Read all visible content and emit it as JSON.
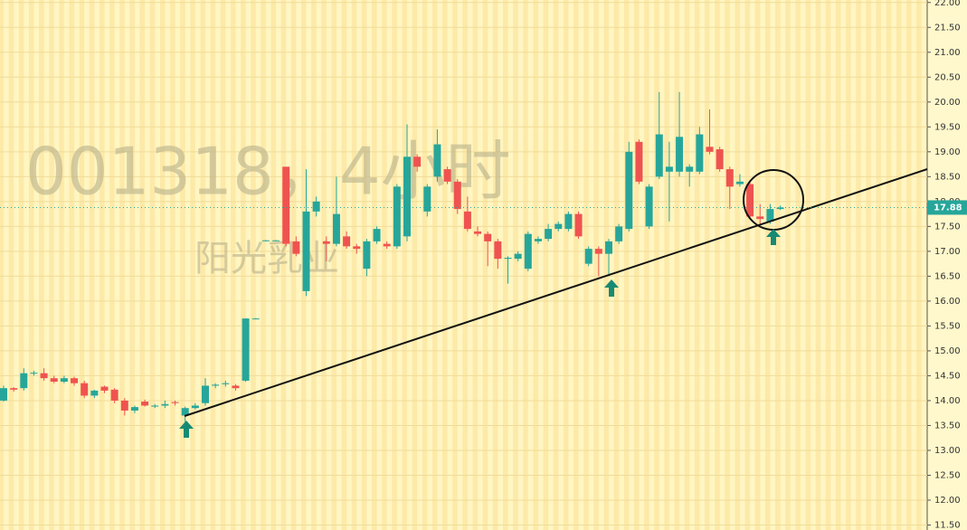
{
  "chart_data": {
    "type": "candlestick",
    "watermark": "001318，4小时",
    "watermark_sub": "阳光乳业",
    "up_color": "#26a69a",
    "down_color": "#ef5350",
    "last_price": 17.88,
    "open": [
      14.0,
      14.25,
      14.25,
      14.55,
      14.55,
      14.45,
      14.38,
      14.45,
      14.35,
      14.1,
      14.28,
      14.22,
      14.0,
      13.8,
      13.98,
      13.88,
      13.9,
      13.97,
      13.7,
      13.85,
      13.95,
      14.3,
      14.33,
      14.3,
      14.4,
      15.65,
      17.22,
      17.22,
      18.7,
      17.2,
      16.2,
      17.8,
      17.2,
      17.15,
      17.3,
      17.1,
      16.65,
      17.2,
      17.15,
      17.1,
      17.3,
      18.9,
      17.8,
      18.5,
      18.65,
      18.4,
      17.8,
      17.4,
      17.35,
      17.2,
      16.85,
      16.85,
      16.65,
      17.2,
      17.25,
      17.45,
      17.45,
      17.75,
      16.75,
      17.05,
      16.95,
      17.2,
      17.45,
      19.2,
      17.5,
      18.5,
      18.6,
      18.6,
      18.6,
      18.6,
      19.1,
      19.05,
      18.65,
      18.35,
      18.35,
      17.7,
      17.6,
      17.85
    ],
    "high": [
      14.3,
      14.27,
      14.65,
      14.6,
      14.65,
      14.5,
      14.5,
      14.48,
      14.4,
      14.22,
      14.3,
      14.25,
      14.05,
      13.9,
      14.02,
      13.93,
      14.0,
      14.0,
      13.88,
      13.95,
      14.45,
      14.35,
      14.4,
      14.33,
      15.65,
      15.66,
      17.23,
      17.23,
      18.7,
      17.3,
      18.65,
      18.1,
      17.3,
      18.5,
      17.4,
      17.15,
      17.25,
      17.5,
      17.2,
      18.35,
      19.55,
      18.95,
      18.35,
      19.45,
      18.7,
      18.45,
      18.1,
      17.5,
      17.4,
      17.25,
      16.9,
      17.0,
      17.4,
      17.3,
      17.55,
      17.6,
      17.8,
      17.8,
      17.1,
      17.1,
      17.25,
      17.55,
      19.2,
      19.25,
      18.35,
      20.2,
      19.2,
      20.2,
      18.75,
      19.5,
      19.85,
      19.1,
      18.7,
      18.55,
      18.4,
      17.95,
      17.95,
      17.92
    ],
    "low": [
      13.98,
      14.18,
      14.2,
      14.5,
      14.4,
      14.35,
      14.35,
      14.3,
      14.05,
      14.05,
      14.15,
      13.95,
      13.7,
      13.75,
      13.88,
      13.85,
      13.85,
      13.9,
      13.55,
      13.82,
      13.9,
      14.25,
      14.28,
      14.2,
      14.38,
      15.64,
      17.21,
      17.21,
      17.1,
      16.9,
      16.1,
      17.7,
      16.8,
      17.1,
      17.05,
      16.95,
      16.5,
      17.15,
      17.05,
      17.05,
      17.2,
      18.6,
      17.7,
      18.4,
      18.35,
      17.75,
      17.4,
      17.3,
      16.7,
      16.65,
      16.35,
      16.8,
      16.6,
      17.15,
      17.2,
      17.4,
      17.4,
      17.25,
      16.7,
      16.5,
      16.5,
      17.15,
      17.4,
      18.35,
      17.45,
      18.45,
      17.6,
      18.5,
      18.3,
      18.55,
      18.95,
      18.6,
      17.85,
      18.3,
      17.65,
      17.55,
      17.55,
      17.83
    ],
    "close": [
      14.25,
      14.22,
      14.55,
      14.56,
      14.45,
      14.38,
      14.45,
      14.35,
      14.1,
      14.2,
      14.2,
      14.0,
      13.8,
      13.87,
      13.9,
      13.9,
      13.93,
      13.95,
      13.85,
      13.9,
      14.3,
      14.32,
      14.35,
      14.25,
      15.65,
      15.65,
      17.22,
      17.22,
      17.15,
      16.95,
      17.8,
      18.0,
      17.15,
      17.75,
      17.1,
      17.05,
      17.2,
      17.45,
      17.1,
      18.3,
      18.9,
      18.7,
      18.3,
      19.15,
      18.4,
      17.85,
      17.45,
      17.35,
      17.2,
      16.85,
      16.87,
      16.95,
      17.35,
      17.25,
      17.45,
      17.55,
      17.75,
      17.3,
      17.05,
      16.95,
      17.2,
      17.5,
      19.0,
      18.4,
      18.3,
      19.35,
      18.7,
      19.3,
      18.7,
      19.35,
      19.0,
      18.65,
      18.3,
      18.4,
      17.7,
      17.65,
      17.85,
      17.88
    ],
    "ylim": [
      11.4,
      22.05
    ],
    "yticks": [
      {
        "value": 11.5,
        "label": "11.50"
      },
      {
        "value": 12,
        "label": "12.00"
      },
      {
        "value": 12.5,
        "label": "12.50"
      },
      {
        "value": 13,
        "label": "13.00"
      },
      {
        "value": 13.5,
        "label": "13.50"
      },
      {
        "value": 14,
        "label": "14.00"
      },
      {
        "value": 14.5,
        "label": "14.50"
      },
      {
        "value": 15,
        "label": "15.00"
      },
      {
        "value": 15.5,
        "label": "15.50"
      },
      {
        "value": 16,
        "label": "16.00"
      },
      {
        "value": 16.5,
        "label": "16.50"
      },
      {
        "value": 17,
        "label": "17.00"
      },
      {
        "value": 17.5,
        "label": "17.50"
      },
      {
        "value": 18,
        "label": "18.00"
      },
      {
        "value": 18.5,
        "label": "18.50"
      },
      {
        "value": 19,
        "label": "19.00"
      },
      {
        "value": 19.5,
        "label": "19.50"
      },
      {
        "value": 20,
        "label": "20.00"
      },
      {
        "value": 20.5,
        "label": "20.50"
      },
      {
        "value": 21,
        "label": "21.00"
      },
      {
        "value": 21.5,
        "label": "21.50"
      },
      {
        "value": 22,
        "label": "22.00"
      }
    ],
    "grid": true
  }
}
